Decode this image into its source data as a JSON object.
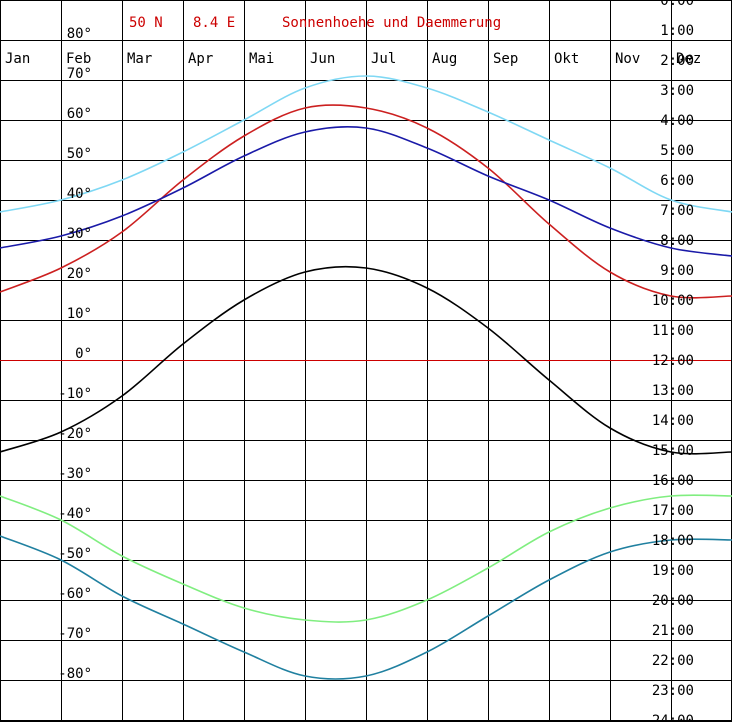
{
  "header": {
    "lat": "50 N",
    "lon": "8.4 E",
    "title": "Sonnenhoehe und Daemmerung"
  },
  "chart_data": {
    "type": "line",
    "title": "Sonnenhoehe und Daemmerung",
    "months": [
      "Jan",
      "Feb",
      "Mar",
      "Apr",
      "Mai",
      "Jun",
      "Jul",
      "Aug",
      "Sep",
      "Okt",
      "Nov",
      "Dez"
    ],
    "y_ticks": [
      "80°",
      "70°",
      "60°",
      "50°",
      "40°",
      "30°",
      "20°",
      "10°",
      "0°",
      "-10°",
      "-20°",
      "-30°",
      "-40°",
      "-50°",
      "-60°",
      "-70°",
      "-80°"
    ],
    "y_tick_values": [
      80,
      70,
      60,
      50,
      40,
      30,
      20,
      10,
      0,
      -10,
      -20,
      -30,
      -40,
      -50,
      -60,
      -70,
      -80
    ],
    "time_ticks": [
      "0:00",
      "1:00",
      "2:00",
      "3:00",
      "4:00",
      "5:00",
      "6:00",
      "7:00",
      "8:00",
      "9:00",
      "10:00",
      "11:00",
      "12:00",
      "13:00",
      "14:00",
      "15:00",
      "16:00",
      "17:00",
      "18:00",
      "19:00",
      "20:00",
      "21:00",
      "22:00",
      "23:00",
      "24:00"
    ],
    "ylim": [
      -90,
      90
    ],
    "zero_line_color": "#cc0000",
    "grid": true,
    "series": [
      {
        "color": "#7fd8f4",
        "x": [
          "Jan",
          "Feb",
          "Mar",
          "Apr",
          "Mai",
          "Jun",
          "Jul",
          "Aug",
          "Sep",
          "Okt",
          "Nov",
          "Dez",
          "Dez end"
        ],
        "values": [
          37,
          40,
          45,
          52,
          60,
          68,
          71,
          68,
          62,
          55,
          48,
          40,
          37
        ]
      },
      {
        "color": "#cc2020",
        "x": [
          "Jan",
          "Feb",
          "Mar",
          "Apr",
          "Mai",
          "Jun",
          "Jul",
          "Aug",
          "Sep",
          "Okt",
          "Nov",
          "Dez",
          "Dez end"
        ],
        "values": [
          17,
          23,
          32,
          45,
          56,
          63,
          63,
          58,
          48,
          34,
          22,
          16,
          16
        ]
      },
      {
        "color": "#1a1aa8",
        "x": [
          "Jan",
          "Feb",
          "Mar",
          "Apr",
          "Mai",
          "Jun",
          "Jul",
          "Aug",
          "Sep",
          "Okt",
          "Nov",
          "Dez",
          "Dez end"
        ],
        "values": [
          28,
          31,
          36,
          43,
          51,
          57,
          58,
          53,
          46,
          40,
          33,
          28,
          26
        ]
      },
      {
        "color": "#000000",
        "x": [
          "Jan",
          "Feb",
          "Mar",
          "Apr",
          "Mai",
          "Jun",
          "Jul",
          "Aug",
          "Sep",
          "Okt",
          "Nov",
          "Dez",
          "Dez end"
        ],
        "values": [
          -23,
          -18,
          -9,
          4,
          15,
          22,
          23,
          18,
          8,
          -5,
          -17,
          -23,
          -23
        ]
      },
      {
        "color": "#80ee80",
        "x": [
          "Jan",
          "Feb",
          "Mar",
          "Apr",
          "Mai",
          "Jun",
          "Jul",
          "Aug",
          "Sep",
          "Okt",
          "Nov",
          "Dez",
          "Dez end"
        ],
        "values": [
          -34,
          -40,
          -49,
          -56,
          -62,
          -65,
          -65,
          -60,
          -52,
          -43,
          -37,
          -34,
          -34
        ]
      },
      {
        "color": "#2080a0",
        "x": [
          "Jan",
          "Feb",
          "Mar",
          "Apr",
          "Mai",
          "Jun",
          "Jul",
          "Aug",
          "Sep",
          "Okt",
          "Nov",
          "Dez",
          "Dez end"
        ],
        "values": [
          -44,
          -50,
          -59,
          -66,
          -73,
          -79,
          -79,
          -73,
          -64,
          -55,
          -48,
          -45,
          -45
        ]
      }
    ]
  }
}
